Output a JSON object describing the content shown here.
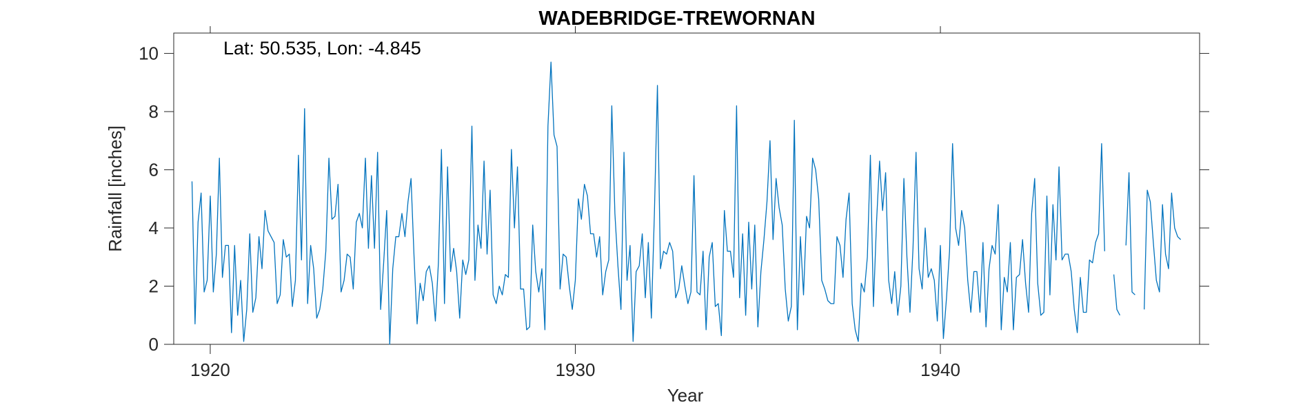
{
  "chart_data": {
    "type": "line",
    "title": "WADEBRIDGE-TREWORNAN",
    "xlabel": "Year",
    "ylabel": "Rainfall [inches]",
    "annotation": "Lat: 50.535, Lon: -4.845",
    "xlim": [
      1919.0,
      1947.1
    ],
    "ylim": [
      0,
      10.7
    ],
    "xticks": [
      1920,
      1930,
      1940
    ],
    "yticks": [
      0,
      2,
      4,
      6,
      8,
      10
    ],
    "grid": false,
    "legend": "none",
    "line_color": "#0072BD",
    "series": [
      {
        "start_year": 1919.5,
        "step_months": 1,
        "values": [
          5.6,
          0.7,
          4.2,
          5.2,
          1.8,
          2.2,
          5.1,
          1.8,
          3.1,
          6.4,
          2.3,
          3.4,
          3.4,
          0.4,
          3.4,
          1.0,
          2.2,
          0.1,
          1.2,
          3.8,
          1.1,
          1.6,
          3.7,
          2.6,
          4.6,
          3.9,
          3.7,
          3.5,
          1.4,
          1.7,
          3.6,
          3.0,
          3.1,
          1.3,
          2.2,
          6.5,
          2.9,
          8.1,
          1.4,
          3.4,
          2.6,
          0.9,
          1.2,
          1.9,
          3.2,
          6.4,
          4.3,
          4.4,
          5.5,
          1.8,
          2.2,
          3.1,
          3.0,
          1.9,
          4.2,
          4.5,
          4.0,
          6.4,
          3.3,
          5.8,
          3.3,
          6.6,
          1.2,
          2.8,
          4.6,
          0.0,
          2.6,
          3.7,
          3.7,
          4.5,
          3.7,
          4.9,
          5.7,
          3.0,
          0.7,
          2.1,
          1.5,
          2.5,
          2.7,
          2.1,
          0.8,
          2.8,
          6.7,
          1.4,
          6.1,
          2.5,
          3.3,
          2.5,
          0.9,
          2.9,
          2.4,
          2.9,
          7.5,
          2.2,
          4.1,
          3.3,
          6.3,
          3.1,
          5.3,
          1.7,
          1.4,
          2.0,
          1.7,
          2.4,
          2.3,
          6.7,
          4.0,
          6.1,
          1.9,
          1.9,
          0.5,
          0.6,
          4.1,
          2.5,
          1.8,
          2.6,
          0.5,
          7.5,
          9.7,
          7.2,
          6.8,
          1.9,
          3.1,
          3.0,
          2.0,
          1.2,
          2.2,
          5.0,
          4.3,
          5.5,
          5.1,
          3.8,
          3.8,
          3.0,
          3.7,
          1.7,
          2.5,
          2.9,
          8.2,
          4.5,
          2.7,
          1.2,
          6.6,
          2.2,
          3.4,
          0.1,
          2.5,
          2.7,
          3.8,
          1.6,
          3.5,
          0.9,
          4.5,
          8.9,
          2.6,
          3.2,
          3.1,
          3.5,
          3.2,
          1.6,
          1.9,
          2.7,
          2.0,
          1.4,
          1.8,
          5.8,
          1.8,
          1.7,
          3.2,
          0.5,
          3.0,
          3.5,
          1.3,
          1.4,
          0.3,
          4.6,
          3.2,
          3.2,
          2.3,
          8.2,
          1.6,
          3.8,
          1.0,
          4.2,
          1.9,
          4.1,
          0.6,
          2.5,
          3.6,
          4.9,
          7.0,
          3.6,
          5.7,
          4.7,
          4.1,
          1.9,
          0.8,
          1.3,
          7.7,
          0.5,
          3.7,
          1.7,
          4.4,
          4.0,
          6.4,
          6.0,
          5.0,
          2.2,
          1.9,
          1.5,
          1.4,
          1.4,
          3.7,
          3.4,
          2.3,
          4.3,
          5.2,
          1.4,
          0.5,
          0.1,
          2.1,
          1.8,
          3.0,
          6.5,
          1.3,
          4.2,
          6.3,
          4.6,
          5.9,
          2.2,
          1.4,
          2.5,
          1.0,
          2.0,
          5.7,
          3.0,
          1.1,
          3.3,
          6.6,
          2.6,
          1.9,
          4.0,
          2.3,
          2.6,
          2.2,
          0.8,
          3.4,
          0.2,
          1.6,
          3.2,
          6.9,
          4.0,
          3.4,
          4.6,
          4.0,
          2.2,
          1.1,
          2.5,
          2.5,
          1.1,
          3.5,
          0.6,
          2.6,
          3.4,
          3.1,
          4.8,
          0.5,
          2.3,
          1.8,
          3.5,
          0.5,
          2.3,
          2.4,
          3.6,
          2.1,
          1.1,
          4.5,
          5.7,
          2.1,
          1.0,
          1.1,
          5.1,
          1.7,
          4.8,
          2.9,
          6.1,
          2.9,
          3.1,
          3.1,
          2.5,
          1.2,
          0.4,
          2.3,
          1.1,
          1.1,
          2.9,
          2.8,
          3.5,
          3.8,
          6.9,
          3.2,
          null,
          null,
          2.4,
          1.2,
          1.0,
          null,
          3.4,
          5.9,
          1.8,
          1.7,
          null,
          null,
          1.2,
          5.3,
          4.9,
          3.5,
          2.2,
          1.8,
          4.8,
          3.1,
          2.6,
          5.2,
          4.0,
          3.7,
          3.6
        ]
      }
    ]
  }
}
